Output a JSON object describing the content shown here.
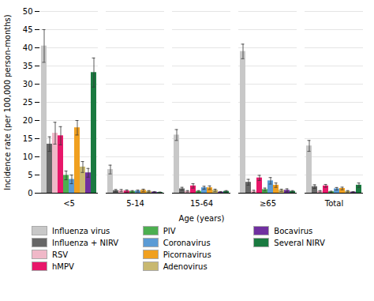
{
  "chart_data": {
    "type": "bar",
    "xlabel": "Age (years)",
    "ylabel": "Incidence rate (per 100,000 person-months)",
    "categories": [
      "<5",
      "5-14",
      "15-64",
      "≥65",
      "Total"
    ],
    "series": [
      {
        "name": "Influenza virus",
        "color": "#c8c8c8",
        "values": [
          40.5,
          6.5,
          16.0,
          39.0,
          13.0
        ],
        "errors": [
          4.5,
          1.2,
          1.5,
          2.0,
          1.5
        ]
      },
      {
        "name": "Influenza + NIRV",
        "color": "#666666",
        "values": [
          13.5,
          0.7,
          1.2,
          3.0,
          1.8
        ],
        "errors": [
          2.0,
          0.3,
          0.4,
          0.8,
          0.5
        ]
      },
      {
        "name": "RSV",
        "color": "#f0b8c8",
        "values": [
          16.5,
          0.7,
          0.5,
          0.5,
          0.5
        ],
        "errors": [
          3.0,
          0.3,
          0.2,
          0.3,
          0.2
        ]
      },
      {
        "name": "hMPV",
        "color": "#e8176a",
        "values": [
          15.8,
          0.6,
          2.0,
          4.2,
          2.0
        ],
        "errors": [
          2.5,
          0.3,
          0.6,
          0.7,
          0.4
        ]
      },
      {
        "name": "PIV",
        "color": "#4caf50",
        "values": [
          4.9,
          0.5,
          0.5,
          1.0,
          0.4
        ],
        "errors": [
          1.2,
          0.2,
          0.2,
          0.4,
          0.15
        ]
      },
      {
        "name": "Coronavirus",
        "color": "#5b9bd5",
        "values": [
          3.8,
          0.6,
          1.5,
          3.4,
          1.2
        ],
        "errors": [
          1.2,
          0.25,
          0.4,
          0.9,
          0.35
        ]
      },
      {
        "name": "Picornavirus",
        "color": "#f0a020",
        "values": [
          18.0,
          0.8,
          1.5,
          2.2,
          1.3
        ],
        "errors": [
          2.0,
          0.3,
          0.5,
          0.6,
          0.35
        ]
      },
      {
        "name": "Adenovirus",
        "color": "#c8b870",
        "values": [
          7.2,
          0.5,
          0.8,
          0.8,
          0.5
        ],
        "errors": [
          1.5,
          0.2,
          0.3,
          0.3,
          0.2
        ]
      },
      {
        "name": "Bocavirus",
        "color": "#7030a0",
        "values": [
          5.6,
          0.3,
          0.3,
          0.8,
          0.3
        ],
        "errors": [
          1.2,
          0.15,
          0.15,
          0.4,
          0.12
        ]
      },
      {
        "name": "Several NIRV",
        "color": "#1a7a40",
        "values": [
          33.2,
          0.2,
          0.5,
          0.5,
          2.2
        ],
        "errors": [
          4.0,
          0.1,
          0.2,
          0.2,
          0.6
        ]
      }
    ],
    "ylim": [
      0,
      50
    ],
    "yticks": [
      0,
      5,
      10,
      15,
      20,
      25,
      30,
      35,
      40,
      45,
      50
    ],
    "grid": true,
    "legend": "bottom"
  }
}
